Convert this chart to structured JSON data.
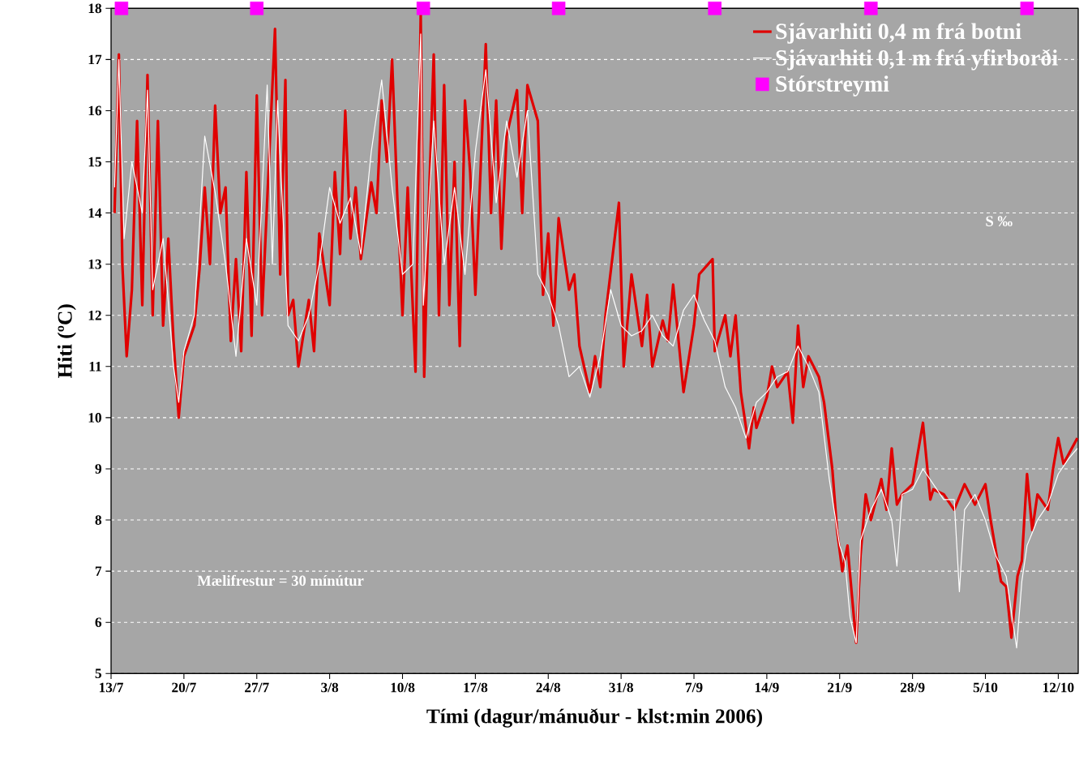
{
  "chart_data": {
    "type": "line",
    "xlabel": "Tími (dagur/mánuður - klst:min  2006)",
    "ylabel": "Hiti (ºC)",
    "xlim": [
      "2006-07-13",
      "2006-10-13T22:00"
    ],
    "ylim": [
      5,
      18
    ],
    "yticks": [
      5,
      6,
      7,
      8,
      9,
      10,
      11,
      12,
      13,
      14,
      15,
      16,
      17,
      18
    ],
    "xticks": [
      {
        "value": "2006-07-13",
        "label": "13/7"
      },
      {
        "value": "2006-07-20",
        "label": "20/7"
      },
      {
        "value": "2006-07-27",
        "label": "27/7"
      },
      {
        "value": "2006-08-03",
        "label": "3/8"
      },
      {
        "value": "2006-08-10",
        "label": "10/8"
      },
      {
        "value": "2006-08-17",
        "label": "17/8"
      },
      {
        "value": "2006-08-24",
        "label": "24/8"
      },
      {
        "value": "2006-08-31",
        "label": "31/8"
      },
      {
        "value": "2006-09-07",
        "label": "7/9"
      },
      {
        "value": "2006-09-14",
        "label": "14/9"
      },
      {
        "value": "2006-09-21",
        "label": "21/9"
      },
      {
        "value": "2006-09-28",
        "label": "28/9"
      },
      {
        "value": "2006-10-05",
        "label": "5/10"
      },
      {
        "value": "2006-10-12",
        "label": "12/10"
      }
    ],
    "grid": "y",
    "legend": "top right",
    "annotations": [
      "Mælifrestur = 30 mínútur",
      "S    ‰"
    ],
    "series": [
      {
        "name": "Sjávarhiti 0,4 m frá botni",
        "color": "#e00000",
        "x": [
          "2006-07-13T08:00",
          "2006-07-13T18:00",
          "2006-07-14T02:00",
          "2006-07-14T12:00",
          "2006-07-15",
          "2006-07-15T12:00",
          "2006-07-16",
          "2006-07-16T12:00",
          "2006-07-17",
          "2006-07-17T12:00",
          "2006-07-18",
          "2006-07-18T12:00",
          "2006-07-19",
          "2006-07-19T12:00",
          "2006-07-20",
          "2006-07-21",
          "2006-07-21T12:00",
          "2006-07-22",
          "2006-07-22T12:00",
          "2006-07-23",
          "2006-07-23T12:00",
          "2006-07-24",
          "2006-07-24T12:00",
          "2006-07-25",
          "2006-07-25T12:00",
          "2006-07-26",
          "2006-07-26T12:00",
          "2006-07-27",
          "2006-07-27T12:00",
          "2006-07-28T18:00",
          "2006-07-29T06:00",
          "2006-07-29T18:00",
          "2006-07-30",
          "2006-07-30T12:00",
          "2006-07-31",
          "2006-08-01",
          "2006-08-01T12:00",
          "2006-08-02",
          "2006-08-03",
          "2006-08-03T12:00",
          "2006-08-04",
          "2006-08-04T12:00",
          "2006-08-05",
          "2006-08-05T12:00",
          "2006-08-06",
          "2006-08-07",
          "2006-08-07T12:00",
          "2006-08-08",
          "2006-08-08T12:00",
          "2006-08-09",
          "2006-08-09T12:00",
          "2006-08-10",
          "2006-08-10T12:00",
          "2006-08-11T06:00",
          "2006-08-11T18:00",
          "2006-08-12T02:00",
          "2006-08-12T12:00",
          "2006-08-13",
          "2006-08-13T12:00",
          "2006-08-14",
          "2006-08-14T12:00",
          "2006-08-15",
          "2006-08-15T12:00",
          "2006-08-16",
          "2006-08-16T12:00",
          "2006-08-17",
          "2006-08-18",
          "2006-08-18T12:00",
          "2006-08-19",
          "2006-08-19T12:00",
          "2006-08-20",
          "2006-08-21",
          "2006-08-21T12:00",
          "2006-08-22",
          "2006-08-23",
          "2006-08-23T12:00",
          "2006-08-24",
          "2006-08-24T12:00",
          "2006-08-25",
          "2006-08-26",
          "2006-08-26T12:00",
          "2006-08-27",
          "2006-08-28",
          "2006-08-28T12:00",
          "2006-08-29",
          "2006-08-29T12:00",
          "2006-08-30T19:00",
          "2006-08-31T06:00",
          "2006-09-01",
          "2006-09-02",
          "2006-09-02T12:00",
          "2006-09-03",
          "2006-09-04",
          "2006-09-04T12:00",
          "2006-09-05",
          "2006-09-06",
          "2006-09-07",
          "2006-09-07T12:00",
          "2006-09-08T19:00",
          "2006-09-09",
          "2006-09-10",
          "2006-09-10T12:00",
          "2006-09-11",
          "2006-09-11T12:00",
          "2006-09-12T07:00",
          "2006-09-12T18:00",
          "2006-09-13",
          "2006-09-14",
          "2006-09-14T12:00",
          "2006-09-15",
          "2006-09-16",
          "2006-09-16T12:00",
          "2006-09-17",
          "2006-09-17T12:00",
          "2006-09-18",
          "2006-09-19",
          "2006-09-19T12:00",
          "2006-09-20T07:00",
          "2006-09-20T18:00",
          "2006-09-21T06:00",
          "2006-09-21T18:00",
          "2006-09-22T14:00",
          "2006-09-23",
          "2006-09-23T12:00",
          "2006-09-24",
          "2006-09-25",
          "2006-09-25T12:00",
          "2006-09-26",
          "2006-09-26T12:00",
          "2006-09-27",
          "2006-09-28",
          "2006-09-29",
          "2006-09-29T17:00",
          "2006-09-30",
          "2006-10-01",
          "2006-10-02",
          "2006-10-03",
          "2006-10-04",
          "2006-10-05",
          "2006-10-05T12:00",
          "2006-10-06",
          "2006-10-06T12:00",
          "2006-10-07",
          "2006-10-07T12:00",
          "2006-10-08T02:00",
          "2006-10-08T12:00",
          "2006-10-09",
          "2006-10-09T12:00",
          "2006-10-10",
          "2006-10-11",
          "2006-10-11T12:00",
          "2006-10-12",
          "2006-10-12T12:00",
          "2006-10-13T20:00"
        ],
        "values": [
          14.0,
          17.1,
          13.0,
          11.2,
          12.5,
          15.8,
          12.2,
          16.7,
          12.0,
          15.8,
          11.8,
          13.5,
          11.5,
          10.0,
          11.2,
          11.8,
          12.9,
          14.5,
          13.0,
          16.1,
          14.0,
          14.5,
          11.5,
          13.1,
          11.3,
          14.8,
          11.6,
          16.3,
          12.0,
          17.6,
          12.8,
          16.6,
          12.0,
          12.3,
          11.0,
          12.3,
          11.3,
          13.6,
          12.2,
          14.8,
          13.2,
          16.0,
          13.5,
          14.5,
          13.1,
          14.6,
          14.0,
          16.2,
          15.0,
          17.0,
          14.3,
          12.0,
          14.5,
          10.9,
          17.9,
          10.8,
          14.0,
          17.1,
          12.0,
          16.5,
          12.2,
          15.0,
          11.4,
          16.2,
          14.8,
          12.4,
          17.3,
          14.0,
          16.2,
          13.3,
          15.5,
          16.4,
          14.0,
          16.5,
          15.8,
          12.4,
          13.6,
          11.8,
          13.9,
          12.5,
          12.8,
          11.4,
          10.5,
          11.2,
          10.6,
          12.0,
          14.2,
          11.0,
          12.8,
          11.4,
          12.4,
          11.0,
          11.9,
          11.5,
          12.6,
          10.5,
          11.8,
          12.8,
          13.1,
          11.3,
          12.0,
          11.2,
          12.0,
          10.5,
          9.4,
          10.2,
          9.8,
          10.4,
          11.0,
          10.6,
          10.9,
          9.9,
          11.8,
          10.6,
          11.2,
          10.8,
          10.3,
          9.0,
          7.8,
          7.0,
          7.5,
          5.6,
          7.3,
          8.5,
          8.0,
          8.8,
          8.2,
          9.4,
          8.3,
          8.5,
          8.7,
          9.9,
          8.4,
          8.6,
          8.5,
          8.2,
          8.7,
          8.3,
          8.7,
          8.0,
          7.4,
          6.8,
          6.7,
          5.7,
          6.9,
          7.2,
          8.9,
          7.8,
          8.5,
          8.2,
          9.0,
          9.6,
          9.1,
          9.6
        ]
      },
      {
        "name": "Sjávarhiti 0,1 m frá yfirborði",
        "color": "#ffffff",
        "x": [
          "2006-07-13T08:00",
          "2006-07-13T18:00",
          "2006-07-14T06:00",
          "2006-07-15",
          "2006-07-16",
          "2006-07-16T12:00",
          "2006-07-17",
          "2006-07-18",
          "2006-07-19",
          "2006-07-19T12:00",
          "2006-07-20",
          "2006-07-21",
          "2006-07-22",
          "2006-07-23",
          "2006-07-24",
          "2006-07-25",
          "2006-07-26",
          "2006-07-27",
          "2006-07-28",
          "2006-07-28T12:00",
          "2006-07-29",
          "2006-07-30",
          "2006-07-31",
          "2006-08-01",
          "2006-08-02",
          "2006-08-03",
          "2006-08-04",
          "2006-08-05",
          "2006-08-06",
          "2006-08-07",
          "2006-08-08",
          "2006-08-09",
          "2006-08-10",
          "2006-08-11",
          "2006-08-11T18:00",
          "2006-08-12",
          "2006-08-13",
          "2006-08-14",
          "2006-08-15",
          "2006-08-16",
          "2006-08-17",
          "2006-08-18",
          "2006-08-19",
          "2006-08-20",
          "2006-08-21",
          "2006-08-22",
          "2006-08-23",
          "2006-08-24",
          "2006-08-25",
          "2006-08-26",
          "2006-08-27",
          "2006-08-28",
          "2006-08-29",
          "2006-08-30",
          "2006-08-31",
          "2006-09-01",
          "2006-09-02",
          "2006-09-03",
          "2006-09-04",
          "2006-09-05",
          "2006-09-06",
          "2006-09-07",
          "2006-09-08",
          "2006-09-09",
          "2006-09-10",
          "2006-09-11",
          "2006-09-12",
          "2006-09-13",
          "2006-09-14",
          "2006-09-15",
          "2006-09-16",
          "2006-09-17",
          "2006-09-18",
          "2006-09-19",
          "2006-09-20",
          "2006-09-21",
          "2006-09-21T12:00",
          "2006-09-22",
          "2006-09-22T14:00",
          "2006-09-23",
          "2006-09-24",
          "2006-09-25",
          "2006-09-26",
          "2006-09-26T12:00",
          "2006-09-27",
          "2006-09-28",
          "2006-09-29",
          "2006-09-30",
          "2006-10-01",
          "2006-10-02",
          "2006-10-02T12:00",
          "2006-10-03",
          "2006-10-04",
          "2006-10-05",
          "2006-10-06",
          "2006-10-07",
          "2006-10-08",
          "2006-10-08T12:00",
          "2006-10-09",
          "2006-10-10",
          "2006-10-11",
          "2006-10-12",
          "2006-10-13",
          "2006-10-13T20:00"
        ],
        "values": [
          14.5,
          17.0,
          13.5,
          15.0,
          14.0,
          16.4,
          12.5,
          13.5,
          11.0,
          10.3,
          11.3,
          12.0,
          15.5,
          14.4,
          13.0,
          11.2,
          13.5,
          12.2,
          16.5,
          13.0,
          16.2,
          11.8,
          11.5,
          12.0,
          13.0,
          14.5,
          13.8,
          14.3,
          13.2,
          15.2,
          16.6,
          14.5,
          12.8,
          13.0,
          17.5,
          12.2,
          15.8,
          13.0,
          14.5,
          12.8,
          15.2,
          16.8,
          14.2,
          15.8,
          14.7,
          16.0,
          12.8,
          12.4,
          11.8,
          10.8,
          11.0,
          10.4,
          11.2,
          12.5,
          11.8,
          11.6,
          11.7,
          12.0,
          11.6,
          11.4,
          12.1,
          12.4,
          11.9,
          11.5,
          10.6,
          10.2,
          9.6,
          10.3,
          10.5,
          10.8,
          10.9,
          11.4,
          11.0,
          10.5,
          8.8,
          7.5,
          7.2,
          6.1,
          5.6,
          7.6,
          8.2,
          8.6,
          8.0,
          7.1,
          8.5,
          8.6,
          9.0,
          8.7,
          8.4,
          8.4,
          6.6,
          8.2,
          8.5,
          8.0,
          7.3,
          6.9,
          5.5,
          6.8,
          7.5,
          8.0,
          8.3,
          8.9,
          9.2,
          9.4
        ]
      },
      {
        "name": "Stórstreymi",
        "type": "scatter",
        "marker": "square",
        "color": "#ff00ff",
        "x": [
          "2006-07-14",
          "2006-07-27",
          "2006-08-12",
          "2006-08-25",
          "2006-09-09",
          "2006-09-24",
          "2006-10-09"
        ],
        "values": [
          18,
          18,
          18,
          18,
          18,
          18,
          18
        ]
      }
    ]
  }
}
